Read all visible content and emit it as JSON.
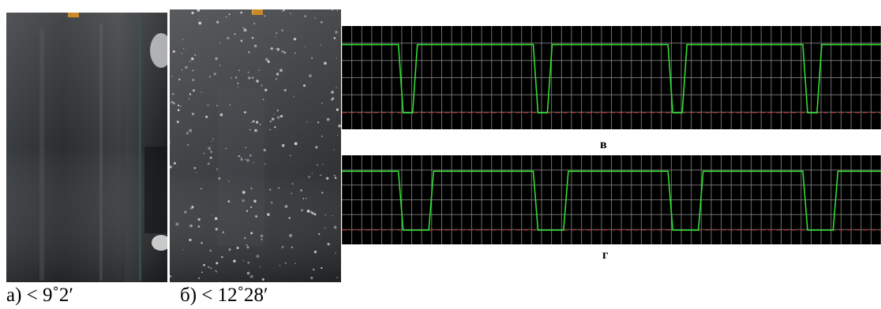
{
  "figure": {
    "panels": [
      {
        "id": "a",
        "caption": "а) < 9˚2′"
      },
      {
        "id": "b",
        "caption": "б) < 12˚28′"
      },
      {
        "id": "v",
        "label": "в"
      },
      {
        "id": "g",
        "label": "г"
      }
    ]
  },
  "colors": {
    "scope_background": "#000000",
    "grid": "#8a8a8a",
    "signal": "#33dd33",
    "baseline": "#aa2222",
    "caption_text": "#000000"
  },
  "scopes": {
    "v": {
      "pulse_fraction": 0.07,
      "pulses": 4
    },
    "g": {
      "pulse_fraction": 0.19,
      "pulses": 4
    }
  }
}
